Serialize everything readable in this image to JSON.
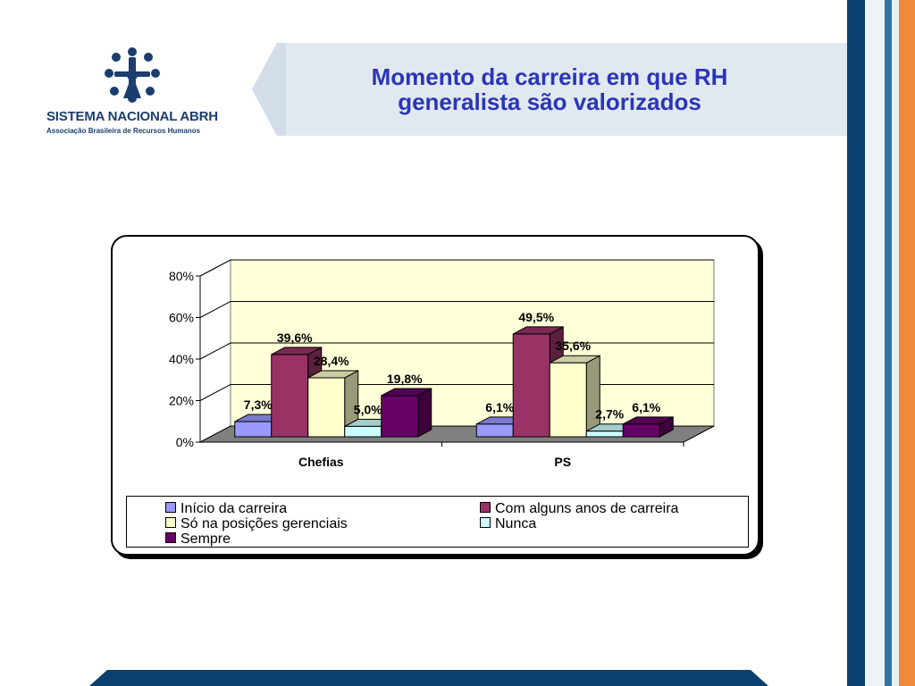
{
  "header": {
    "title_line1": "Momento da carreira em que RH",
    "title_line2": "generalista são valorizados",
    "logo_name": "SISTEMA NACIONAL ABRH",
    "logo_subtitle": "Associação Brasileira de Recursos Humanos"
  },
  "colors": {
    "navy": "#0a3f6e",
    "orange": "#f08a3a",
    "title": "#2b35b8"
  },
  "chart_data": {
    "type": "bar",
    "categories": [
      "Chefias",
      "PS"
    ],
    "yticks": [
      "0%",
      "20%",
      "40%",
      "60%",
      "80%"
    ],
    "ylim": [
      0,
      80
    ],
    "grid": true,
    "legend_position": "bottom",
    "series": [
      {
        "name": "Início da carreira",
        "color": "#9999ff",
        "values": [
          7.3,
          6.1
        ],
        "labels": [
          "7,3%",
          "6,1%"
        ]
      },
      {
        "name": "Com alguns anos de carreira",
        "color": "#993366",
        "values": [
          39.6,
          49.5
        ],
        "labels": [
          "39,6%",
          "49,5%"
        ]
      },
      {
        "name": "Só na posições gerenciais",
        "color": "#ffffcc",
        "values": [
          28.4,
          35.6
        ],
        "labels": [
          "28,4%",
          "35,6%"
        ]
      },
      {
        "name": "Nunca",
        "color": "#ccffff",
        "values": [
          5.0,
          2.7
        ],
        "labels": [
          "5,0%",
          "2,7%"
        ]
      },
      {
        "name": "Sempre",
        "color": "#660066",
        "values": [
          19.8,
          6.1
        ],
        "labels": [
          "19,8%",
          "6,1%"
        ]
      }
    ]
  }
}
